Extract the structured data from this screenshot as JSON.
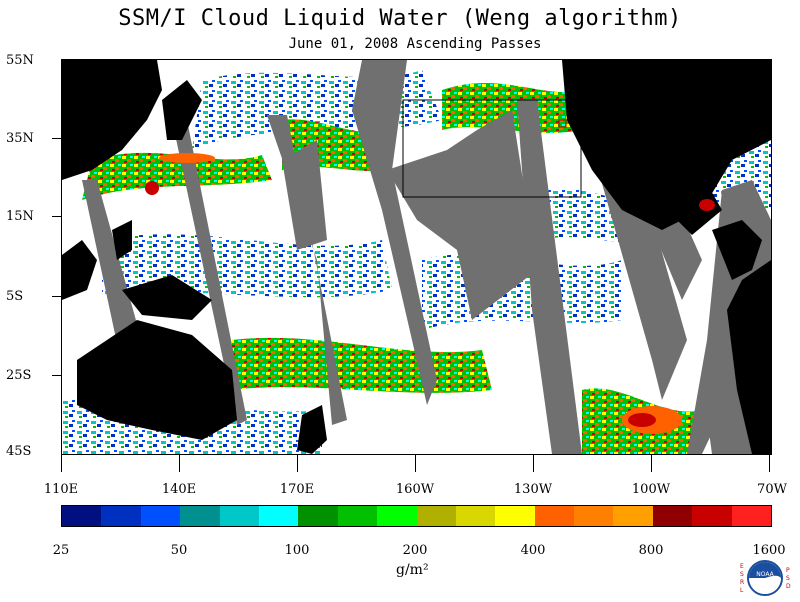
{
  "title": "SSM/I Cloud Liquid Water (Weng algorithm)",
  "subtitle": "June 01, 2008  Ascending Passes",
  "lat_labels": [
    "55N",
    "35N",
    "15N",
    "5S",
    "25S",
    "45S"
  ],
  "lon_labels": [
    "110E",
    "140E",
    "170E",
    "160W",
    "130W",
    "100W",
    "70W"
  ],
  "colorbar": {
    "labels": [
      "25",
      "50",
      "100",
      "200",
      "400",
      "800",
      "1600"
    ],
    "colors": [
      "#001080",
      "#0030c0",
      "#0050ff",
      "#009090",
      "#00c8c8",
      "#00ffff",
      "#009000",
      "#00c000",
      "#00ff00",
      "#b0b000",
      "#d8d800",
      "#ffff00",
      "#ff6000",
      "#ff8000",
      "#ffa000",
      "#900000",
      "#c80000",
      "#ff2020"
    ],
    "units": "g/m²"
  },
  "logo": {
    "left_text": "ESRL",
    "right_text": "PSD",
    "center": "NOAA"
  },
  "map_colors": {
    "land": "#000000",
    "no_data": "#707070",
    "background": "#ffffff"
  }
}
